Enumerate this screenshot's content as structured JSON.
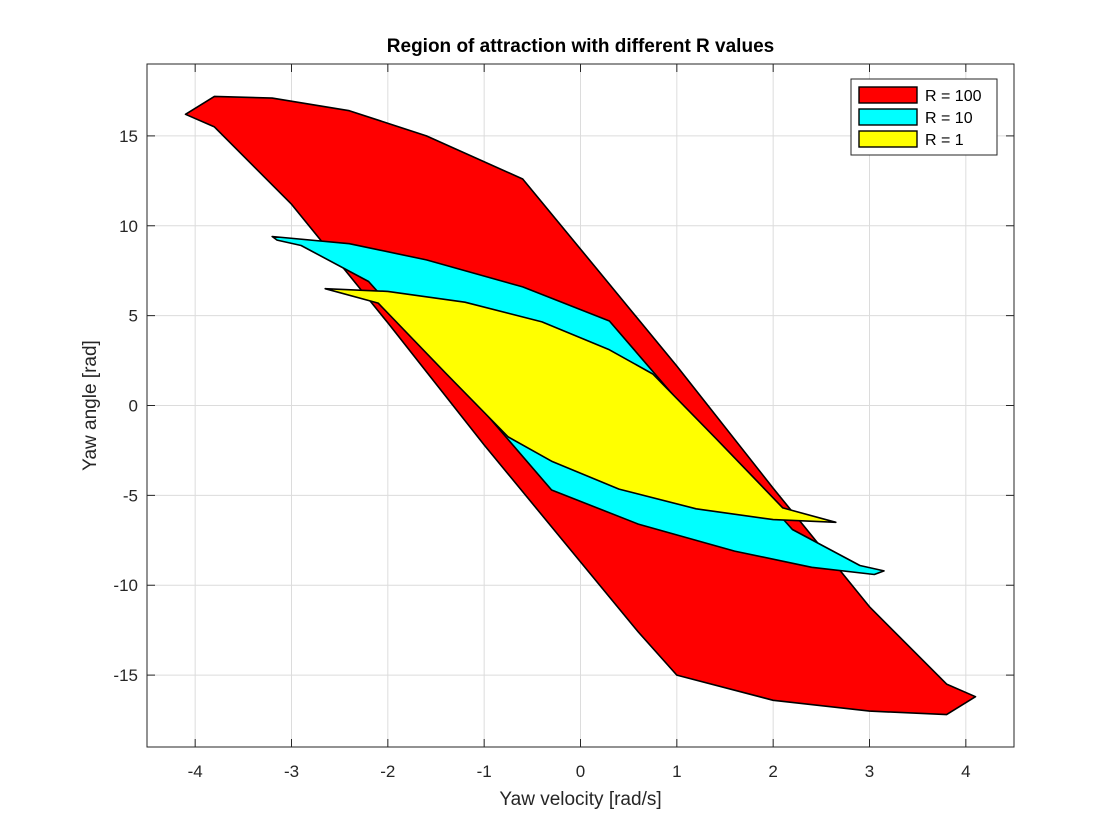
{
  "chart_data": {
    "type": "area",
    "title": "Region of attraction with different R values",
    "xlabel": "Yaw velocity [rad/s]",
    "ylabel": "Yaw angle [rad]",
    "xlim": [
      -4.5,
      4.5
    ],
    "ylim": [
      -19,
      19
    ],
    "xticks": [
      -4,
      -3,
      -2,
      -1,
      0,
      1,
      2,
      3,
      4
    ],
    "yticks": [
      -15,
      -10,
      -5,
      0,
      5,
      10,
      15
    ],
    "grid": true,
    "legend_position": "top-right",
    "series": [
      {
        "name": "R = 100",
        "color": "#ff0000",
        "x": [
          -3.8,
          -3.2,
          -2.4,
          -1.6,
          -0.6,
          0.2,
          1.0,
          2.0,
          3.0,
          3.8,
          4.1,
          3.8,
          3.0,
          2.0,
          1.0,
          0.6,
          -0.2,
          -1.0,
          -2.0,
          -3.0,
          -3.8,
          -4.1
        ],
        "y": [
          17.2,
          17.1,
          16.4,
          15.0,
          12.6,
          7.4,
          2.2,
          -4.6,
          -11.2,
          -15.5,
          -16.2,
          -17.2,
          -17.0,
          -16.4,
          -15.0,
          -12.6,
          -7.4,
          -2.2,
          4.6,
          11.2,
          15.5,
          16.2
        ]
      },
      {
        "name": "R = 10",
        "color": "#00ffff",
        "x": [
          -3.2,
          -2.4,
          -1.6,
          -0.6,
          0.3,
          1.2,
          2.2,
          2.9,
          3.15,
          3.05,
          2.4,
          1.6,
          0.6,
          -0.3,
          -1.2,
          -2.2,
          -2.9,
          -3.15
        ],
        "y": [
          9.4,
          9.0,
          8.1,
          6.6,
          4.7,
          -0.9,
          -6.9,
          -8.9,
          -9.2,
          -9.4,
          -9.0,
          -8.1,
          -6.6,
          -4.7,
          0.9,
          6.9,
          8.9,
          9.2
        ]
      },
      {
        "name": "R = 1",
        "color": "#ffff00",
        "x": [
          -2.65,
          -2.0,
          -1.2,
          -0.4,
          0.3,
          0.75,
          1.4,
          2.1,
          2.65,
          2.0,
          1.2,
          0.4,
          -0.3,
          -0.75,
          -1.4,
          -2.1
        ],
        "y": [
          6.5,
          6.35,
          5.75,
          4.65,
          3.1,
          1.75,
          -1.8,
          -5.7,
          -6.5,
          -6.35,
          -5.75,
          -4.65,
          -3.1,
          -1.75,
          1.8,
          5.7
        ]
      }
    ]
  }
}
